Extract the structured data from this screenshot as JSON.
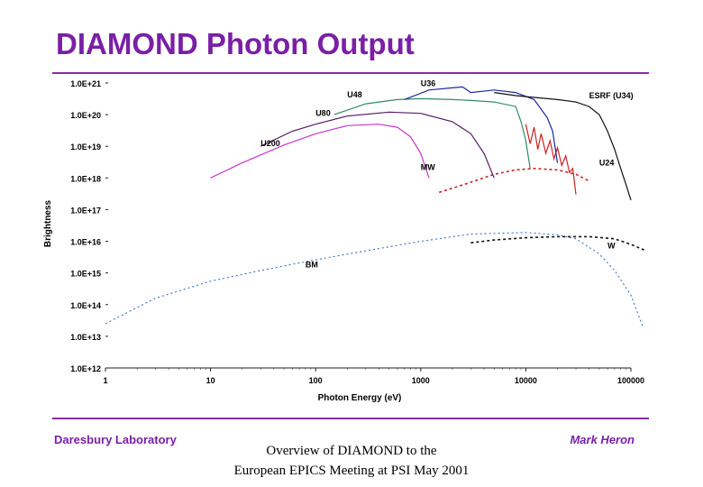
{
  "header": {
    "title": "DIAMOND Photon Output"
  },
  "footer": {
    "left": "Daresbury Laboratory",
    "center_line1": "Overview of DIAMOND to the",
    "center_line2": "European EPICS Meeting at PSI May 2001",
    "right": "Mark Heron"
  },
  "chart_data": {
    "type": "line",
    "title": "DIAMOND Photon Output",
    "xlabel": "Photon Energy (eV)",
    "ylabel": "Brightness",
    "xscale": "log",
    "yscale": "log",
    "xlim": [
      1,
      100000
    ],
    "ylim": [
      1000000000000.0,
      1e+21
    ],
    "x_ticks": [
      "1",
      "10",
      "100",
      "1000",
      "10000",
      "100000"
    ],
    "y_ticks": [
      "1.0E+12",
      "1.0E+13",
      "1.0E+14",
      "1.0E+15",
      "1.0E+16",
      "1.0E+17",
      "1.0E+18",
      "1.0E+19",
      "1.0E+20",
      "1.0E+21"
    ],
    "colors": {
      "BM": "#3b6fc4",
      "W": "#111111",
      "MW": "#cc2222",
      "U24": "#cc2222",
      "U200": "#cc33cc",
      "U80": "#551a66",
      "U48": "#2f8a6a",
      "U36": "#1a2aa0",
      "ESRF (U34)": "#111111"
    },
    "series": [
      {
        "name": "BM",
        "style": "dashed",
        "x": [
          1,
          3,
          10,
          30,
          100,
          300,
          1000,
          3000,
          10000,
          20000,
          30000,
          50000,
          70000,
          100000,
          130000
        ],
        "y": [
          25000000000000.0,
          160000000000000.0,
          550000000000000.0,
          1200000000000000.0,
          2600000000000000.0,
          5000000000000000.0,
          1e+16,
          1.7e+16,
          1.9e+16,
          1.6e+16,
          1.2e+16,
          4000000000000000.0,
          1200000000000000.0,
          200000000000000.0,
          20000000000000.0
        ]
      },
      {
        "name": "W",
        "style": "dashed",
        "x": [
          3000,
          5000,
          10000,
          20000,
          40000,
          70000,
          100000,
          140000
        ],
        "y": [
          9000000000000000.0,
          1.1e+16,
          1.3e+16,
          1.4e+16,
          1.4e+16,
          1.2e+16,
          8000000000000000.0,
          5000000000000000.0
        ]
      },
      {
        "name": "MW",
        "style": "dashed",
        "x": [
          1500,
          2500,
          5000,
          8000,
          12000,
          20000,
          30000,
          40000
        ],
        "y": [
          3.5e+17,
          6e+17,
          1.3e+18,
          1.8e+18,
          2e+18,
          1.8e+18,
          1.3e+18,
          8e+17
        ]
      },
      {
        "name": "U24",
        "style": "solid",
        "x": [
          10000,
          11000,
          12000,
          13000,
          14000,
          15500,
          17000,
          18500,
          20000,
          22000,
          24000,
          26000,
          28000,
          30000
        ],
        "y": [
          5e+19,
          1.2e+19,
          4e+19,
          8e+18,
          2.5e+19,
          6e+18,
          1.5e+19,
          4e+18,
          9e+18,
          2.5e+18,
          5e+18,
          1.5e+18,
          2e+18,
          3e+17
        ]
      },
      {
        "name": "U200",
        "style": "solid",
        "x": [
          10,
          20,
          50,
          100,
          200,
          400,
          600,
          800,
          1000,
          1200
        ],
        "y": [
          1e+18,
          3e+18,
          1.1e+19,
          2.5e+19,
          4.5e+19,
          5e+19,
          4e+19,
          2e+19,
          6e+18,
          1e+18
        ]
      },
      {
        "name": "U80",
        "style": "solid",
        "x": [
          30,
          60,
          100,
          200,
          500,
          1000,
          2000,
          3000,
          4000,
          5000
        ],
        "y": [
          1e+19,
          3e+19,
          5e+19,
          9e+19,
          1.2e+20,
          1.1e+20,
          6e+19,
          2.5e+19,
          6e+18,
          1e+18
        ]
      },
      {
        "name": "U48",
        "style": "solid",
        "x": [
          150,
          300,
          600,
          1000,
          2000,
          3000,
          5000,
          8000,
          9000,
          10000,
          11000
        ],
        "y": [
          1e+20,
          2.2e+20,
          3e+20,
          3.2e+20,
          3e+20,
          2.8e+20,
          2.5e+20,
          1.8e+20,
          6e+19,
          1.5e+19,
          2e+18
        ]
      },
      {
        "name": "U36",
        "style": "solid",
        "x": [
          700,
          1200,
          2000,
          2500,
          3000,
          5000,
          8000,
          12000,
          16000,
          18000,
          20000
        ],
        "y": [
          3e+20,
          6e+20,
          7e+20,
          7.5e+20,
          5e+20,
          6e+20,
          5e+20,
          3e+20,
          8e+19,
          3e+19,
          3e+18
        ]
      },
      {
        "name": "ESRF (U34)",
        "style": "solid",
        "x": [
          5000,
          8000,
          12000,
          20000,
          30000,
          40000,
          50000,
          60000,
          70000,
          80000,
          90000,
          100000
        ],
        "y": [
          5e+20,
          4e+20,
          3.5e+20,
          3e+20,
          2.5e+20,
          1.8e+20,
          1e+20,
          3e+19,
          8e+18,
          2e+18,
          6e+17,
          2e+17
        ]
      }
    ],
    "annotations": [
      {
        "text": "U36",
        "x": 1000,
        "y": 8e+20
      },
      {
        "text": "U48",
        "x": 200,
        "y": 3.5e+20
      },
      {
        "text": "ESRF (U34)",
        "x": 40000,
        "y": 3.3e+20
      },
      {
        "text": "U80",
        "x": 100,
        "y": 9e+19
      },
      {
        "text": "U200",
        "x": 30,
        "y": 1e+19
      },
      {
        "text": "MW",
        "x": 1000,
        "y": 1.8e+18
      },
      {
        "text": "U24",
        "x": 50000,
        "y": 2.5e+18
      },
      {
        "text": "W",
        "x": 60000,
        "y": 6000000000000000.0
      },
      {
        "text": "BM",
        "x": 80,
        "y": 1500000000000000.0
      }
    ]
  }
}
